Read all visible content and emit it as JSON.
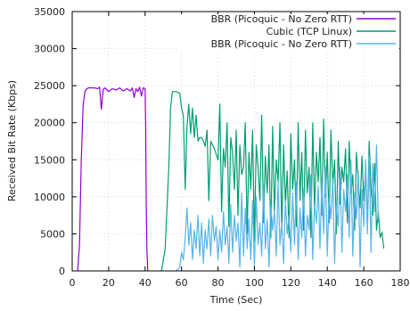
{
  "chart_data": {
    "type": "line",
    "xlabel": "Time (Sec)",
    "ylabel": "Received Bit Rate (Kbps)",
    "xlim": [
      0,
      180
    ],
    "ylim": [
      0,
      35000
    ],
    "xticks": [
      0,
      20,
      40,
      60,
      80,
      100,
      120,
      140,
      160,
      180
    ],
    "yticks": [
      0,
      5000,
      10000,
      15000,
      20000,
      25000,
      30000,
      35000
    ],
    "grid": true,
    "legend_position": "top-right",
    "series": [
      {
        "name": "BBR (Picoquic - No Zero RTT)",
        "color": "#9400d3",
        "x": [
          3,
          4,
          5,
          6,
          7,
          8,
          9,
          10,
          12,
          14,
          15,
          16,
          17,
          18,
          20,
          22,
          24,
          26,
          28,
          30,
          32,
          33,
          34,
          35,
          36,
          37,
          38,
          39,
          40,
          40.3,
          40.6,
          41,
          41.5
        ],
        "y": [
          0,
          3500,
          15000,
          22500,
          24200,
          24600,
          24700,
          24700,
          24700,
          24600,
          24800,
          21800,
          24500,
          24700,
          24200,
          24600,
          24400,
          24700,
          24300,
          24600,
          24300,
          24700,
          23400,
          24600,
          24200,
          24800,
          23600,
          24700,
          24600,
          20000,
          10000,
          3000,
          0
        ]
      },
      {
        "name": "Cubic (TCP Linux)",
        "color": "#009e73",
        "x": [
          49,
          51,
          53,
          54,
          55,
          57,
          59,
          60,
          61,
          62,
          63,
          64,
          65,
          66,
          67,
          68,
          69,
          70,
          71,
          72,
          73,
          74,
          75,
          76,
          78,
          80,
          81,
          82,
          83,
          84,
          85,
          86,
          87,
          88,
          89,
          90,
          91,
          92,
          93,
          94,
          95,
          96,
          97,
          98,
          99,
          100,
          101,
          102,
          103,
          104,
          105,
          106,
          107,
          108,
          109,
          110,
          111,
          112,
          113,
          114,
          115,
          116,
          117,
          118,
          119,
          120,
          121,
          122,
          123,
          124,
          125,
          126,
          127,
          128,
          129,
          130,
          131,
          132,
          133,
          134,
          135,
          136,
          137,
          138,
          139,
          140,
          141,
          142,
          143,
          144,
          145,
          146,
          147,
          148,
          149,
          150,
          151,
          152,
          153,
          154,
          155,
          156,
          157,
          158,
          159,
          160,
          161,
          162,
          163,
          164,
          165,
          166,
          167,
          168,
          169,
          170,
          171
        ],
        "y": [
          0,
          3000,
          14000,
          22000,
          24200,
          24200,
          24000,
          22000,
          21000,
          11000,
          19500,
          22500,
          18500,
          22000,
          18000,
          21000,
          17500,
          18000,
          18000,
          17500,
          16800,
          19000,
          9500,
          17500,
          16500,
          15000,
          22500,
          8000,
          16500,
          14000,
          20000,
          6000,
          18000,
          16000,
          11000,
          19000,
          7500,
          17000,
          13000,
          14000,
          20000,
          5000,
          16000,
          11000,
          19000,
          4000,
          17000,
          14000,
          9500,
          21000,
          6500,
          15500,
          10500,
          17000,
          4500,
          19500,
          8000,
          15000,
          12000,
          20000,
          5500,
          17000,
          9000,
          13500,
          4500,
          18500,
          11000,
          15000,
          6000,
          20000,
          9500,
          16000,
          5500,
          19000,
          10500,
          14000,
          4500,
          20000,
          8000,
          16000,
          12000,
          18000,
          7500,
          20500,
          10000,
          16000,
          6500,
          19000,
          11500,
          15000,
          5000,
          17500,
          9000,
          14000,
          12000,
          16500,
          6500,
          17500,
          10500,
          13000,
          5500,
          16000,
          12000,
          8500,
          15500,
          9500,
          13500,
          6000,
          17500,
          11000,
          7500,
          14500,
          5500,
          8000,
          4500,
          5200,
          3000
        ]
      },
      {
        "name": "BBR (Picoquic - No Zero RTT)",
        "color": "#56b4e9",
        "x": [
          57,
          58,
          59,
          60,
          61,
          62,
          63,
          64,
          65,
          66,
          67,
          68,
          69,
          70,
          71,
          72,
          73,
          74,
          75,
          76,
          77,
          78,
          79,
          80,
          81,
          82,
          83,
          84,
          85,
          86,
          87,
          88,
          89,
          90,
          91,
          92,
          93,
          94,
          95,
          96,
          97,
          98,
          99,
          100,
          101,
          102,
          103,
          104,
          105,
          106,
          107,
          108,
          109,
          110,
          111,
          112,
          113,
          114,
          115,
          116,
          117,
          118,
          119,
          120,
          121,
          122,
          123,
          124,
          125,
          126,
          127,
          128,
          129,
          130,
          131,
          132,
          133,
          134,
          135,
          136,
          137,
          138,
          139,
          140,
          141,
          142,
          143,
          144,
          145,
          146,
          147,
          148,
          149,
          150,
          151,
          152,
          153,
          154,
          155,
          156,
          157,
          158,
          159,
          160,
          161,
          162,
          163,
          164,
          165,
          166,
          167,
          168
        ],
        "y": [
          0,
          200,
          500,
          2500,
          1500,
          4500,
          8500,
          3500,
          6500,
          1500,
          5500,
          3000,
          7500,
          2000,
          6500,
          1000,
          5500,
          3000,
          7000,
          2000,
          7500,
          4000,
          6000,
          1500,
          5500,
          2500,
          8000,
          3500,
          6000,
          1000,
          9000,
          2500,
          7500,
          4000,
          6500,
          500,
          10500,
          2000,
          8500,
          3000,
          7000,
          1500,
          9500,
          500,
          10000,
          3500,
          6500,
          2000,
          11500,
          3000,
          7000,
          500,
          9000,
          5500,
          8000,
          2000,
          12000,
          3500,
          6500,
          1000,
          9500,
          5000,
          7500,
          2500,
          10500,
          3500,
          12000,
          1500,
          8500,
          4500,
          11000,
          2000,
          7500,
          5500,
          13000,
          1500,
          9000,
          6500,
          11500,
          3000,
          12500,
          5000,
          14000,
          2000,
          10000,
          7000,
          12500,
          1000,
          9000,
          6000,
          14000,
          2500,
          11000,
          8000,
          13000,
          4500,
          15000,
          2000,
          10500,
          7000,
          13500,
          500,
          11000,
          6000,
          15000,
          5000,
          15500,
          2500,
          14500,
          8000,
          17000,
          6500
        ]
      }
    ]
  }
}
